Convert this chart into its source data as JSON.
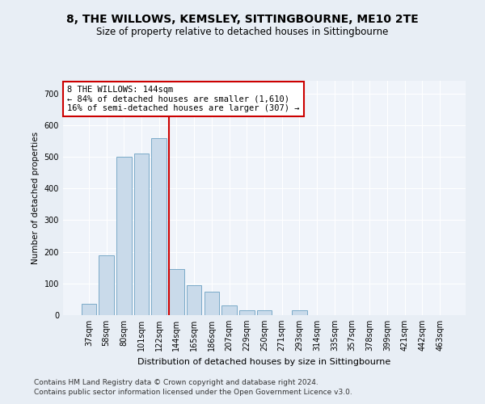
{
  "title": "8, THE WILLOWS, KEMSLEY, SITTINGBOURNE, ME10 2TE",
  "subtitle": "Size of property relative to detached houses in Sittingbourne",
  "xlabel": "Distribution of detached houses by size in Sittingbourne",
  "ylabel": "Number of detached properties",
  "categories": [
    "37sqm",
    "58sqm",
    "80sqm",
    "101sqm",
    "122sqm",
    "144sqm",
    "165sqm",
    "186sqm",
    "207sqm",
    "229sqm",
    "250sqm",
    "271sqm",
    "293sqm",
    "314sqm",
    "335sqm",
    "357sqm",
    "378sqm",
    "399sqm",
    "421sqm",
    "442sqm",
    "463sqm"
  ],
  "values": [
    35,
    190,
    500,
    510,
    560,
    145,
    95,
    75,
    30,
    15,
    15,
    0,
    15,
    0,
    0,
    0,
    0,
    0,
    0,
    0,
    0
  ],
  "bar_color": "#c9daea",
  "bar_edge_color": "#7aaac8",
  "vline_color": "#cc0000",
  "annotation_text": "8 THE WILLOWS: 144sqm\n← 84% of detached houses are smaller (1,610)\n16% of semi-detached houses are larger (307) →",
  "annotation_box_color": "#cc0000",
  "annotation_fontsize": 7.5,
  "yticks": [
    0,
    100,
    200,
    300,
    400,
    500,
    600,
    700
  ],
  "ylim": [
    0,
    740
  ],
  "bg_color": "#e8eef5",
  "plot_bg_color": "#f0f4fa",
  "grid_color": "#ffffff",
  "footer_line1": "Contains HM Land Registry data © Crown copyright and database right 2024.",
  "footer_line2": "Contains public sector information licensed under the Open Government Licence v3.0.",
  "title_fontsize": 10,
  "subtitle_fontsize": 8.5,
  "xlabel_fontsize": 8,
  "ylabel_fontsize": 7.5,
  "tick_fontsize": 7,
  "footer_fontsize": 6.5
}
